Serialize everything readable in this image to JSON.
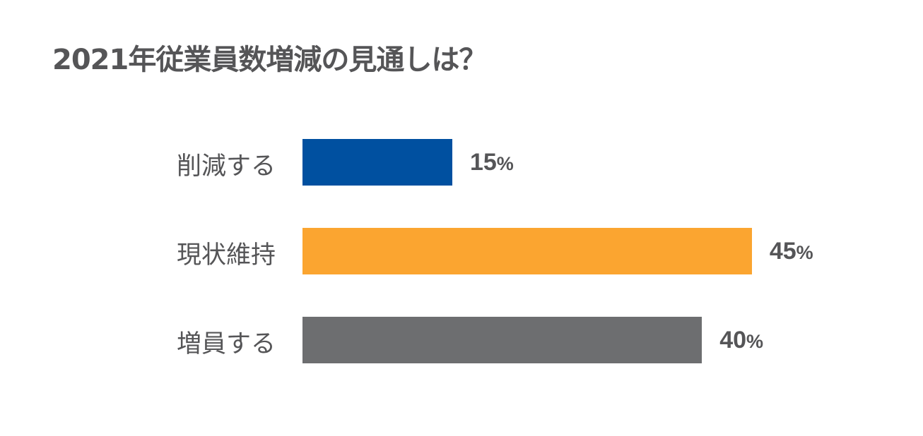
{
  "chart_data": {
    "type": "bar",
    "orientation": "horizontal",
    "title": "2021年従業員数増減の見通しは？",
    "categories": [
      "削減する",
      "現状維持",
      "増員する"
    ],
    "values": [
      15,
      45,
      40
    ],
    "value_labels": [
      "15",
      "45",
      "40"
    ],
    "unit": "%",
    "colors": [
      "#0050A0",
      "#FBA530",
      "#6D6E70"
    ],
    "xlim": [
      0,
      45
    ],
    "grid": false,
    "xlabel": "",
    "ylabel": ""
  }
}
